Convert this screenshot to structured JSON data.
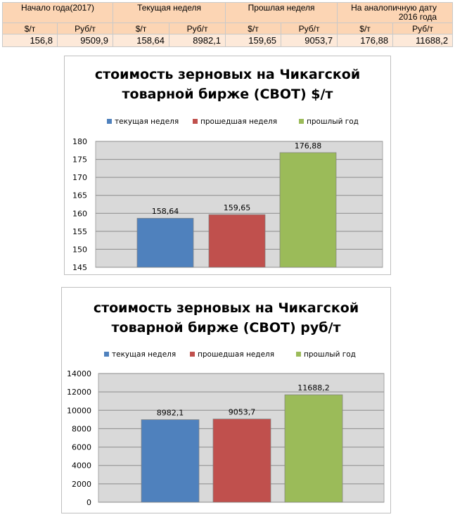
{
  "table": {
    "headers": [
      "Начало года(2017)",
      "Текущая неделя",
      "Прошлая неделя",
      "На аналопичную дату 2016 года"
    ],
    "units": [
      "$/т",
      "Руб/т",
      "$/т",
      "Руб/т",
      "$/т",
      "Руб/т",
      "$/т",
      "Руб/т"
    ],
    "values": [
      "156,8",
      "9509,9",
      "158,64",
      "8982,1",
      "159,65",
      "9053,7",
      "176,88",
      "11688,2"
    ]
  },
  "colors": {
    "table_header_bg": "#fcd5b4",
    "table_value_bg": "#fde9d9",
    "series": [
      "#4f81bd",
      "#c0504d",
      "#9bbb59"
    ],
    "plot_bg": "#d9d9d9"
  },
  "chart_data": [
    {
      "type": "bar",
      "title_lines": [
        "стоимость зерновых на Чикагской",
        "товарной бирже (CBOT) $/т"
      ],
      "legend_position": "top",
      "series": [
        {
          "name": "текущая неделя",
          "values": [
            158.64
          ],
          "label": "158,64"
        },
        {
          "name": "прошедшая неделя",
          "values": [
            159.65
          ],
          "label": "159,65"
        },
        {
          "name": "прошлый год",
          "values": [
            176.88
          ],
          "label": "176,88"
        }
      ],
      "ylim": [
        145,
        180
      ],
      "yticks": [
        "145",
        "150",
        "155",
        "160",
        "165",
        "170",
        "175",
        "180"
      ],
      "grid": true
    },
    {
      "type": "bar",
      "title_lines": [
        "стоимость зерновых на Чикагской",
        "товарной бирже (CBOT) руб/т"
      ],
      "legend_position": "top",
      "series": [
        {
          "name": "текущая неделя",
          "values": [
            8982.1
          ],
          "label": "8982,1"
        },
        {
          "name": "прошедшая неделя",
          "values": [
            9053.7
          ],
          "label": "9053,7"
        },
        {
          "name": "прошлый год",
          "values": [
            11688.2
          ],
          "label": "11688,2"
        }
      ],
      "ylim": [
        0,
        14000
      ],
      "yticks": [
        "0",
        "2000",
        "4000",
        "6000",
        "8000",
        "10000",
        "12000",
        "14000"
      ],
      "grid": true
    }
  ]
}
